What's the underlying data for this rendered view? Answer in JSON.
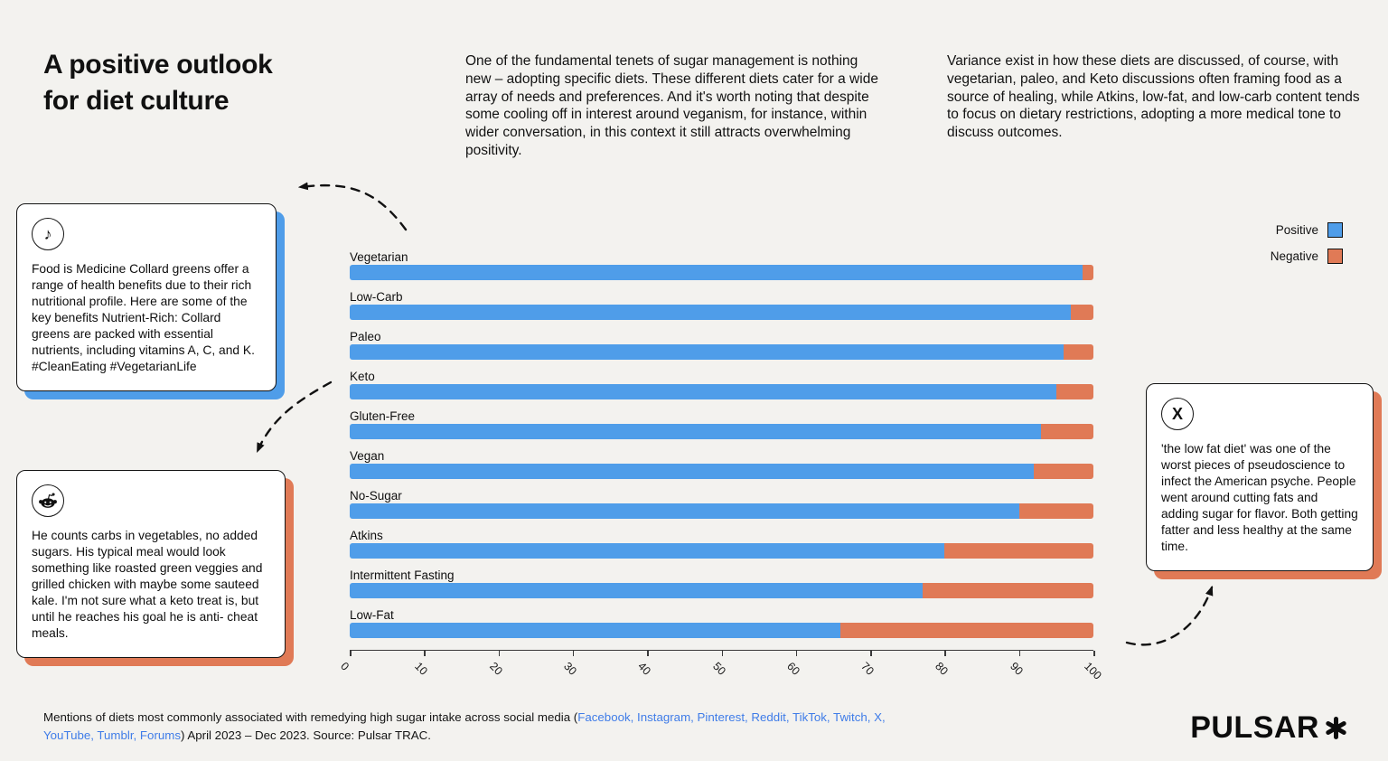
{
  "page": {
    "title_line1": "A positive outlook",
    "title_line2": "for diet culture",
    "intro_paragraph": "One of the fundamental tenets of sugar management is nothing new – adopting specific diets. These different diets cater for a wide array of needs and preferences. And it's worth noting that despite some cooling off in interest around veganism, for instance, within wider conversation, in this context it still attracts overwhelming positivity.",
    "variance_paragraph": "Variance exist in how these diets are discussed, of course, with vegetarian, paleo, and Keto discussions often framing food as a source of healing, while Atkins, low-fat, and low-carb content tends to focus on dietary restrictions, adopting a more medical tone to discuss outcomes.",
    "logo_text": "PULSAR",
    "logo_icon": "asterisk-star-icon"
  },
  "colors": {
    "positive_blue": "#4f9de9",
    "negative_orange": "#e07a56",
    "background": "#f3f2ef",
    "footer_link_blue": "#3f7ce8",
    "ink": "#111111"
  },
  "legend": {
    "positive_label": "Positive",
    "negative_label": "Negative"
  },
  "quotes": {
    "tiktok": {
      "platform": "TikTok",
      "icon": "tiktok-note-icon",
      "glyph": "♪",
      "text": "Food is Medicine Collard greens offer a range of health benefits due to their rich nutritional profile. Here are some of the key benefits Nutrient-Rich: Collard greens are packed with essential nutrients, including vitamins A, C, and K. #CleanEating #VegetarianLife"
    },
    "reddit": {
      "platform": "Reddit",
      "icon": "reddit-alien-icon",
      "text": "He counts carbs in vegetables, no added sugars. His typical meal would look something like roasted green veggies and grilled chicken with maybe some sauteed kale. I'm not sure what a keto treat is, but until he reaches his goal he is anti- cheat meals."
    },
    "x": {
      "platform": "X",
      "icon": "x-logo-icon",
      "glyph": "X",
      "text": "'the low fat diet' was one of the worst pieces of pseudoscience to infect the American psyche. People went around cutting fats and adding sugar for flavor. Both getting fatter and less healthy at the same time."
    }
  },
  "chart_data": {
    "type": "bar",
    "orientation": "horizontal",
    "stacked": true,
    "categories": [
      "Vegetarian",
      "Low-Carb",
      "Paleo",
      "Keto",
      "Gluten-Free",
      "Vegan",
      "No-Sugar",
      "Atkins",
      "Intermittent Fasting",
      "Low-Fat"
    ],
    "series": [
      {
        "name": "Positive",
        "color": "#4f9de9",
        "values": [
          98.5,
          97,
          96,
          95,
          93,
          92,
          90,
          80,
          77,
          66
        ]
      },
      {
        "name": "Negative",
        "color": "#e07a56",
        "values": [
          1.5,
          3,
          4,
          5,
          7,
          8,
          10,
          20,
          23,
          34
        ]
      }
    ],
    "x_ticks": [
      0,
      10,
      20,
      30,
      40,
      50,
      60,
      70,
      80,
      90,
      100
    ],
    "xlim": [
      0,
      100
    ],
    "unit": "percent of mentions",
    "grid": false,
    "legend_position": "top-right"
  },
  "footer": {
    "segments": [
      {
        "text": "Mentions of diets most commonly associated with remedying high sugar intake across social media (",
        "link": false
      },
      {
        "text": "Facebook, Instagram, Pinterest, Reddit, TikTok, Twitch, X, YouTube, Tumblr, Forums",
        "link": true
      },
      {
        "text": ") April 2023 – Dec 2023. Source: Pulsar TRAC.",
        "link": false
      }
    ]
  }
}
